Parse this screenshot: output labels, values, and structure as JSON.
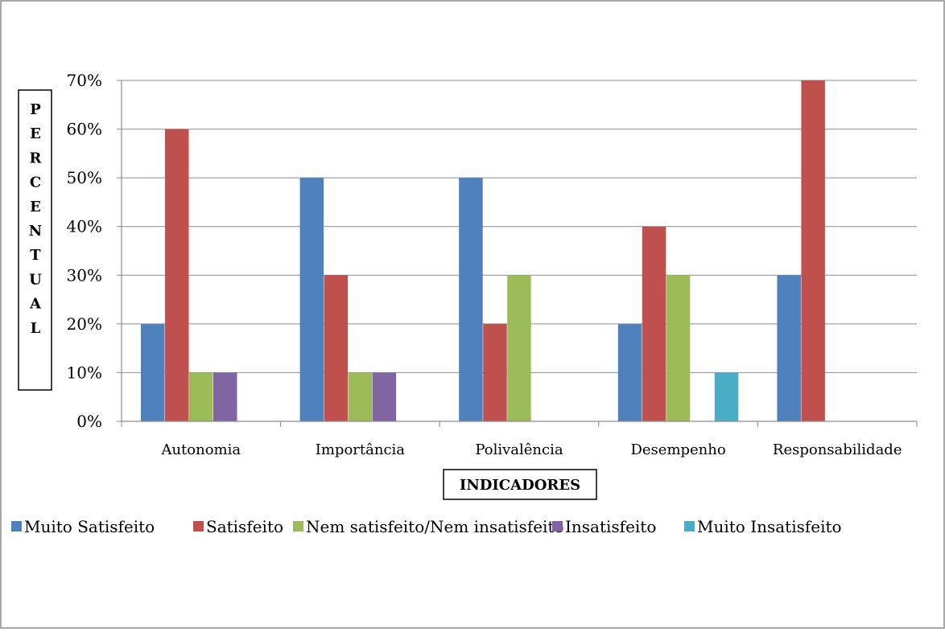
{
  "chart_data": {
    "type": "bar",
    "categories": [
      "Autonomia",
      "Importância",
      "Polivalência",
      "Desempenho",
      "Responsabilidade"
    ],
    "series": [
      {
        "name": "Muito Satisfeito",
        "color": "#4F81BD",
        "values": [
          20,
          50,
          50,
          20,
          30
        ]
      },
      {
        "name": "Satisfeito",
        "color": "#C0504D",
        "values": [
          60,
          30,
          20,
          40,
          70
        ]
      },
      {
        "name": "Nem satisfeito/Nem insatisfeito",
        "color": "#9BBB59",
        "values": [
          10,
          10,
          30,
          30,
          0
        ]
      },
      {
        "name": "Insatisfeito",
        "color": "#8064A2",
        "values": [
          10,
          10,
          0,
          0,
          0
        ]
      },
      {
        "name": "Muito Insatisfeito",
        "color": "#4BACC6",
        "values": [
          0,
          0,
          0,
          10,
          0
        ]
      }
    ],
    "ylim": [
      0,
      70
    ],
    "yticks": [
      "0%",
      "10%",
      "20%",
      "30%",
      "40%",
      "50%",
      "60%",
      "70%"
    ],
    "ylabel": "PERCENTUAL",
    "xlabel": "INDICADORES",
    "grid": true,
    "legend_position": "bottom"
  }
}
